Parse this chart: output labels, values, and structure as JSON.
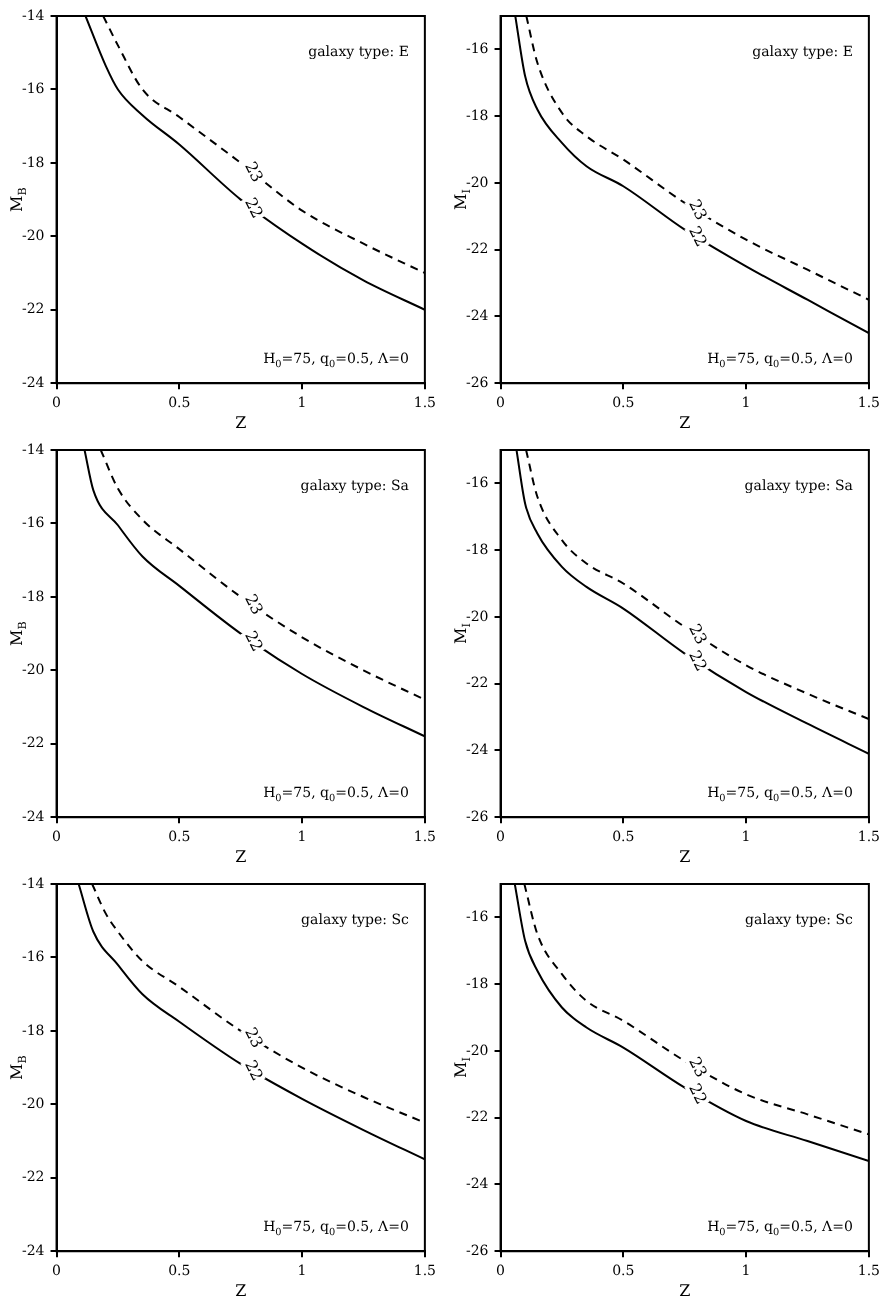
{
  "chart_data": [
    {
      "type": "line",
      "xlabel": "Z",
      "ylabel": "M$_{B}$",
      "xlim": [
        0,
        1.5
      ],
      "xticks": [
        0,
        0.5,
        1,
        1.5
      ],
      "ylim": [
        -24,
        -14
      ],
      "yticks": [
        -24,
        -22,
        -20,
        -18,
        -16,
        -14
      ],
      "grid": false,
      "legend": false,
      "marker": "none",
      "annotations": [
        "galaxy type: E",
        "H$_{0}$=75, q$_{0}$=0.5, Λ=0"
      ],
      "series": [
        {
          "name": "23",
          "color": "#000000",
          "line_style": "dashed",
          "x": [
            0.19,
            0.25,
            0.35,
            0.5,
            0.75,
            1,
            1.25,
            1.5
          ],
          "values": [
            -14,
            -14.8,
            -16.0,
            -16.75,
            -18.0,
            -19.3,
            -20.2,
            -21.0
          ]
        },
        {
          "name": "22",
          "color": "#000000",
          "line_style": "solid",
          "x": [
            0.118,
            0.2,
            0.25,
            0.35,
            0.5,
            0.75,
            1,
            1.25,
            1.5
          ],
          "values": [
            -14,
            -15.35,
            -16.0,
            -16.7,
            -17.5,
            -19.0,
            -20.2,
            -21.2,
            -22.0
          ]
        }
      ]
    },
    {
      "type": "line",
      "xlabel": "Z",
      "ylabel": "M$_{I}$",
      "xlim": [
        0,
        1.5
      ],
      "xticks": [
        0,
        0.5,
        1,
        1.5
      ],
      "ylim": [
        -26,
        -15
      ],
      "yticks": [
        -26,
        -24,
        -22,
        -20,
        -18,
        -16
      ],
      "grid": false,
      "legend": false,
      "marker": "none",
      "annotations": [
        "galaxy type: E",
        "H$_{0}$=75, q$_{0}$=0.5, Λ=0"
      ],
      "series": [
        {
          "name": "23",
          "color": "#000000",
          "line_style": "dashed",
          "x": [
            0.105,
            0.15,
            0.25,
            0.35,
            0.5,
            0.75,
            1,
            1.25,
            1.5
          ],
          "values": [
            -15,
            -16.4,
            -17.9,
            -18.6,
            -19.3,
            -20.6,
            -21.7,
            -22.6,
            -23.5
          ]
        },
        {
          "name": "22",
          "color": "#000000",
          "line_style": "solid",
          "x": [
            0.06,
            0.1,
            0.15,
            0.25,
            0.35,
            0.5,
            0.75,
            1,
            1.25,
            1.5
          ],
          "values": [
            -15,
            -16.8,
            -17.8,
            -18.8,
            -19.5,
            -20.1,
            -21.4,
            -22.5,
            -23.5,
            -24.5
          ]
        }
      ]
    },
    {
      "type": "line",
      "xlabel": "Z",
      "ylabel": "M$_{B}$",
      "xlim": [
        0,
        1.5
      ],
      "xticks": [
        0,
        0.5,
        1,
        1.5
      ],
      "ylim": [
        -24,
        -14
      ],
      "yticks": [
        -24,
        -22,
        -20,
        -18,
        -16,
        -14
      ],
      "grid": false,
      "legend": false,
      "marker": "none",
      "annotations": [
        "galaxy type: Sa",
        "H$_{0}$=75, q$_{0}$=0.5, Λ=0"
      ],
      "series": [
        {
          "name": "23",
          "color": "#000000",
          "line_style": "dashed",
          "x": [
            0.18,
            0.25,
            0.35,
            0.5,
            0.75,
            1,
            1.25,
            1.5
          ],
          "values": [
            -14,
            -15.05,
            -15.9,
            -16.7,
            -18.0,
            -19.1,
            -20.0,
            -20.8
          ]
        },
        {
          "name": "22",
          "color": "#000000",
          "line_style": "solid",
          "x": [
            0.114,
            0.15,
            0.25,
            0.35,
            0.5,
            0.75,
            1,
            1.25,
            1.5
          ],
          "values": [
            -14,
            -15.1,
            -16.05,
            -16.9,
            -17.7,
            -19.0,
            -20.1,
            -21.0,
            -21.8
          ]
        }
      ]
    },
    {
      "type": "line",
      "xlabel": "Z",
      "ylabel": "M$_{I}$",
      "xlim": [
        0,
        1.5
      ],
      "xticks": [
        0,
        0.5,
        1,
        1.5
      ],
      "ylim": [
        -26,
        -15
      ],
      "yticks": [
        -26,
        -24,
        -22,
        -20,
        -18,
        -16
      ],
      "grid": false,
      "legend": false,
      "marker": "none",
      "annotations": [
        "galaxy type: Sa",
        "H$_{0}$=75, q$_{0}$=0.5, Λ=0"
      ],
      "series": [
        {
          "name": "23",
          "color": "#000000",
          "line_style": "dashed",
          "x": [
            0.104,
            0.15,
            0.25,
            0.35,
            0.5,
            0.75,
            1,
            1.25,
            1.5
          ],
          "values": [
            -15,
            -16.4,
            -17.7,
            -18.4,
            -19.0,
            -20.3,
            -21.45,
            -22.3,
            -23.06
          ]
        },
        {
          "name": "22",
          "color": "#000000",
          "line_style": "solid",
          "x": [
            0.065,
            0.1,
            0.15,
            0.25,
            0.35,
            0.5,
            0.75,
            1,
            1.25,
            1.5
          ],
          "values": [
            -15,
            -16.6,
            -17.5,
            -18.5,
            -19.1,
            -19.75,
            -21.1,
            -22.25,
            -23.2,
            -24.1
          ]
        }
      ]
    },
    {
      "type": "line",
      "xlabel": "Z",
      "ylabel": "M$_{B}$",
      "xlim": [
        0,
        1.5
      ],
      "xticks": [
        0,
        0.5,
        1,
        1.5
      ],
      "ylim": [
        -24,
        -14
      ],
      "yticks": [
        -24,
        -22,
        -20,
        -18,
        -16,
        -14
      ],
      "grid": false,
      "legend": false,
      "marker": "none",
      "annotations": [
        "galaxy type: Sc",
        "H$_{0}$=75, q$_{0}$=0.5, Λ=0"
      ],
      "series": [
        {
          "name": "23",
          "color": "#000000",
          "line_style": "dashed",
          "x": [
            0.145,
            0.2,
            0.25,
            0.35,
            0.5,
            0.75,
            1,
            1.25,
            1.5
          ],
          "values": [
            -14,
            -14.8,
            -15.3,
            -16.1,
            -16.8,
            -18.0,
            -19.0,
            -19.8,
            -20.5
          ]
        },
        {
          "name": "22",
          "color": "#000000",
          "line_style": "solid",
          "x": [
            0.09,
            0.15,
            0.25,
            0.35,
            0.5,
            0.75,
            1,
            1.25,
            1.5
          ],
          "values": [
            -14,
            -15.3,
            -16.2,
            -17.0,
            -17.75,
            -18.9,
            -19.85,
            -20.7,
            -21.5
          ]
        }
      ]
    },
    {
      "type": "line",
      "xlabel": "Z",
      "ylabel": "M$_{I}$",
      "xlim": [
        0,
        1.5
      ],
      "xticks": [
        0,
        0.5,
        1,
        1.5
      ],
      "ylim": [
        -26,
        -15
      ],
      "yticks": [
        -26,
        -24,
        -22,
        -20,
        -18,
        -16
      ],
      "grid": false,
      "legend": false,
      "marker": "none",
      "annotations": [
        "galaxy type: Sc",
        "H$_{0}$=75, q$_{0}$=0.5, Λ=0"
      ],
      "series": [
        {
          "name": "23",
          "color": "#000000",
          "line_style": "dashed",
          "x": [
            0.097,
            0.15,
            0.25,
            0.35,
            0.5,
            0.75,
            1,
            1.25,
            1.5
          ],
          "values": [
            -15,
            -16.5,
            -17.7,
            -18.5,
            -19.1,
            -20.3,
            -21.3,
            -21.9,
            -22.5
          ]
        },
        {
          "name": "22",
          "color": "#000000",
          "line_style": "solid",
          "x": [
            0.058,
            0.1,
            0.15,
            0.25,
            0.35,
            0.5,
            0.75,
            1,
            1.25,
            1.5
          ],
          "values": [
            -15,
            -16.7,
            -17.6,
            -18.7,
            -19.3,
            -19.9,
            -21.1,
            -22.1,
            -22.7,
            -23.3
          ]
        }
      ]
    }
  ]
}
